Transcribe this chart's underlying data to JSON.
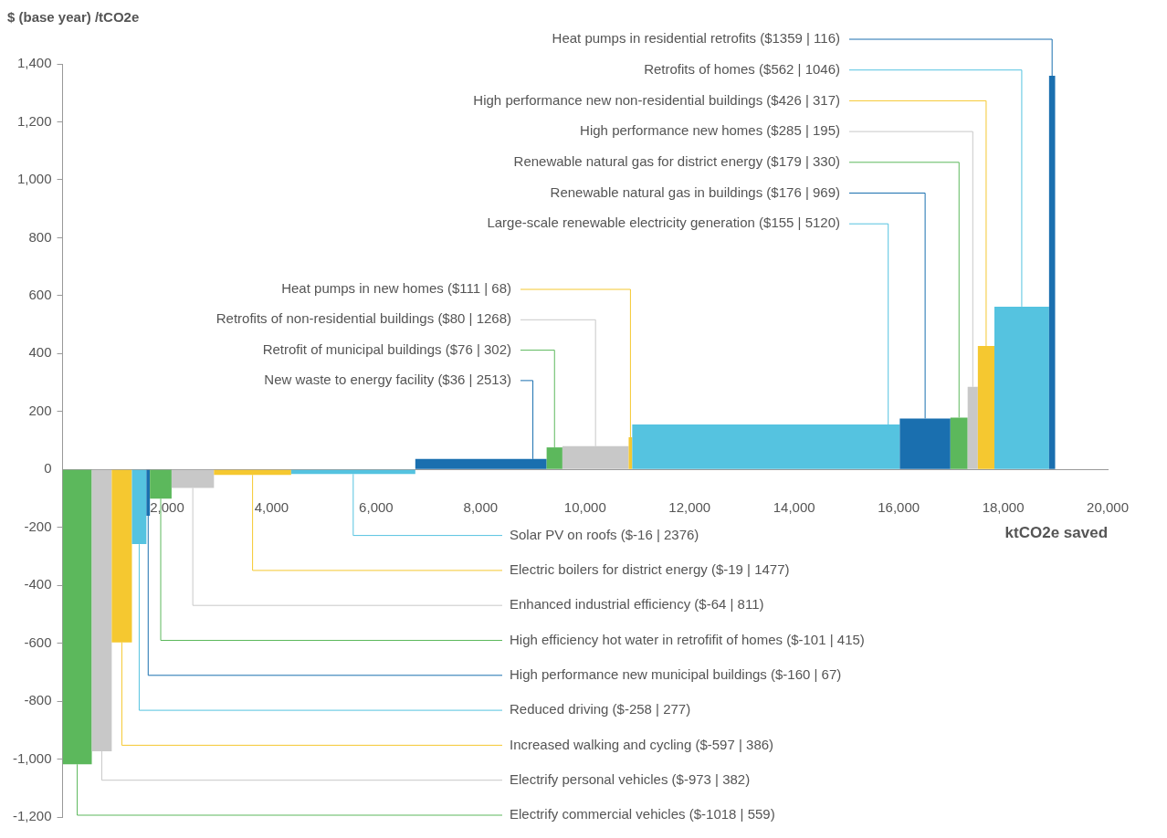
{
  "chart_data": {
    "type": "histogram",
    "ylabel": "$ (base year) /tCO2e",
    "xlabel": "ktCO2e saved",
    "xlim": [
      0,
      20000
    ],
    "xticks": [
      {
        "value": 2000,
        "label": "2,000"
      },
      {
        "value": 4000,
        "label": "4,000"
      },
      {
        "value": 6000,
        "label": "6,000"
      },
      {
        "value": 8000,
        "label": "8,000"
      },
      {
        "value": 10000,
        "label": "10,000"
      },
      {
        "value": 12000,
        "label": "12,000"
      },
      {
        "value": 14000,
        "label": "14,000"
      },
      {
        "value": 16000,
        "label": "16,000"
      },
      {
        "value": 18000,
        "label": "18,000"
      },
      {
        "value": 20000,
        "label": "20,000"
      }
    ],
    "ylim": [
      -1200,
      1400
    ],
    "yticks": [
      {
        "value": -1200,
        "label": "-1,200"
      },
      {
        "value": -1000,
        "label": "-1,000"
      },
      {
        "value": -800,
        "label": "-800"
      },
      {
        "value": -600,
        "label": "-600"
      },
      {
        "value": -400,
        "label": "-400"
      },
      {
        "value": -200,
        "label": "-200"
      },
      {
        "value": 0,
        "label": "0"
      },
      {
        "value": 200,
        "label": "200"
      },
      {
        "value": 400,
        "label": "400"
      },
      {
        "value": 600,
        "label": "600"
      },
      {
        "value": 800,
        "label": "800"
      },
      {
        "value": 1000,
        "label": "1,000"
      },
      {
        "value": 1200,
        "label": "1,200"
      },
      {
        "value": 1400,
        "label": "1,400"
      }
    ],
    "grid": false,
    "legend": false,
    "bins": [
      0,
      559,
      941,
      1327,
      1604,
      1671,
      2086,
      2897,
      4374,
      6750,
      9263,
      9565,
      10833,
      10901,
      16021,
      16990,
      17320,
      17515,
      17832,
      18878,
      18994
    ],
    "values": [
      -1018,
      -973,
      -597,
      -258,
      -160,
      -101,
      -64,
      -19,
      -16,
      36,
      76,
      80,
      111,
      155,
      176,
      179,
      285,
      426,
      562,
      1359
    ],
    "colors": [
      "#5cb85c",
      "#c8c8c8",
      "#f5c830",
      "#55c3e0",
      "#1a6faf",
      "#5cb85c",
      "#c8c8c8",
      "#f5c830",
      "#55c3e0",
      "#1a6faf",
      "#5cb85c",
      "#c8c8c8",
      "#f5c830",
      "#55c3e0",
      "#1a6faf",
      "#5cb85c",
      "#c8c8c8",
      "#f5c830",
      "#55c3e0",
      "#1a6faf"
    ],
    "annotations": [
      {
        "text": "Electrify commercial vehicles ($-1018 | 559)",
        "x": 280,
        "y": -1018
      },
      {
        "text": "Electrify personal vehicles ($-973 | 382)",
        "x": 750,
        "y": -973
      },
      {
        "text": "Increased walking and cycling ($-597 | 386)",
        "x": 1134,
        "y": -597
      },
      {
        "text": "Reduced driving ($-258 | 277)",
        "x": 1466,
        "y": -258
      },
      {
        "text": "High performance new municipal buildings ($-160 | 67)",
        "x": 1638,
        "y": -160
      },
      {
        "text": "High efficiency hot water in retrofifit of homes ($-101 | 415)",
        "x": 1878,
        "y": -101
      },
      {
        "text": "Enhanced industrial efficiency ($-64 | 811)",
        "x": 2492,
        "y": -64
      },
      {
        "text": "Electric boilers for district energy ($-19 | 1477)",
        "x": 3636,
        "y": -19
      },
      {
        "text": "Solar PV on roofs ($-16 | 2376)",
        "x": 5562,
        "y": -16
      },
      {
        "text": "New waste to energy facility ($36 | 2513)",
        "x": 9000,
        "y": 36
      },
      {
        "text": "Retrofit of municipal buildings ($76 | 302)",
        "x": 9414,
        "y": 76
      },
      {
        "text": "Retrofits of non-residential buildings ($80 | 1268)",
        "x": 10199,
        "y": 80
      },
      {
        "text": "Heat pumps in new homes ($111 | 68)",
        "x": 10867,
        "y": 111
      },
      {
        "text": "Large-scale renewable electricity generation ($155 | 5120)",
        "x": 15800,
        "y": 155
      },
      {
        "text": "Renewable natural gas in buildings ($176 | 969)",
        "x": 16506,
        "y": 176
      },
      {
        "text": "Renewable natural gas for district energy ($179 | 330)",
        "x": 17155,
        "y": 179
      },
      {
        "text": "High performance new homes ($285 | 195)",
        "x": 17418,
        "y": 285
      },
      {
        "text": "High performance new non-residential buildings ($426 | 317)",
        "x": 17674,
        "y": 426
      },
      {
        "text": "Retrofits of homes ($562 | 1046)",
        "x": 18355,
        "y": 562
      },
      {
        "text": "Heat pumps in residential retrofits ($1359 | 116)",
        "x": 18936,
        "y": 1359
      }
    ]
  }
}
